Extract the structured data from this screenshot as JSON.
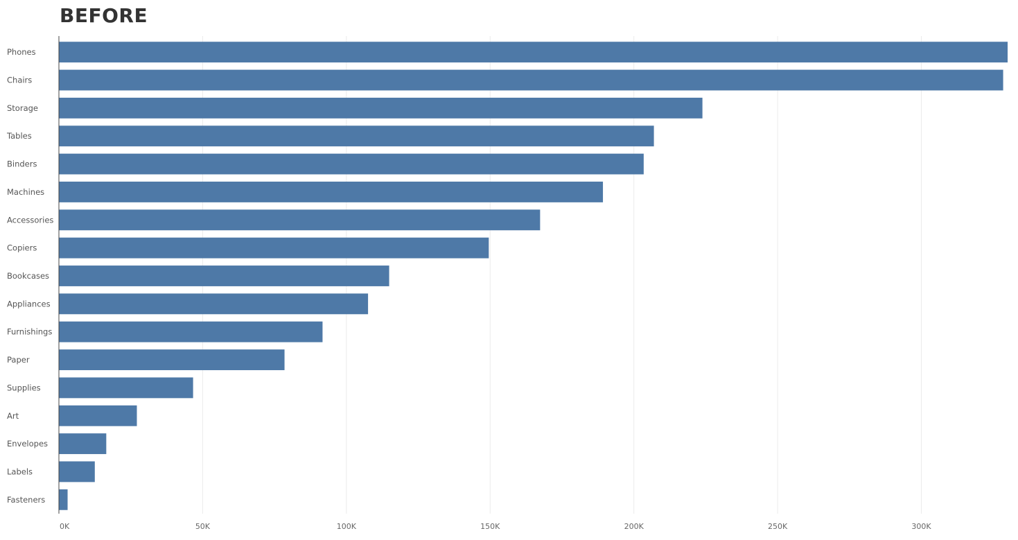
{
  "title": "BEFORE",
  "chart_data": {
    "type": "bar",
    "orientation": "horizontal",
    "title": "BEFORE",
    "xlabel": "",
    "ylabel": "",
    "categories": [
      "Phones",
      "Chairs",
      "Storage",
      "Tables",
      "Binders",
      "Machines",
      "Accessories",
      "Copiers",
      "Bookcases",
      "Appliances",
      "Furnishings",
      "Paper",
      "Supplies",
      "Art",
      "Envelopes",
      "Labels",
      "Fasteners"
    ],
    "values": [
      330007,
      328449,
      223844,
      206966,
      203413,
      189239,
      167380,
      149528,
      114880,
      107532,
      91705,
      78479,
      46674,
      27119,
      16476,
      12486,
      3024
    ],
    "xlim": [
      0,
      330000
    ],
    "x_ticks": [
      0,
      50000,
      100000,
      150000,
      200000,
      250000,
      300000
    ],
    "x_tick_labels": [
      "0K",
      "50K",
      "100K",
      "150K",
      "200K",
      "250K",
      "300K"
    ],
    "grid": "vertical",
    "bar_color": "#4e79a7"
  }
}
